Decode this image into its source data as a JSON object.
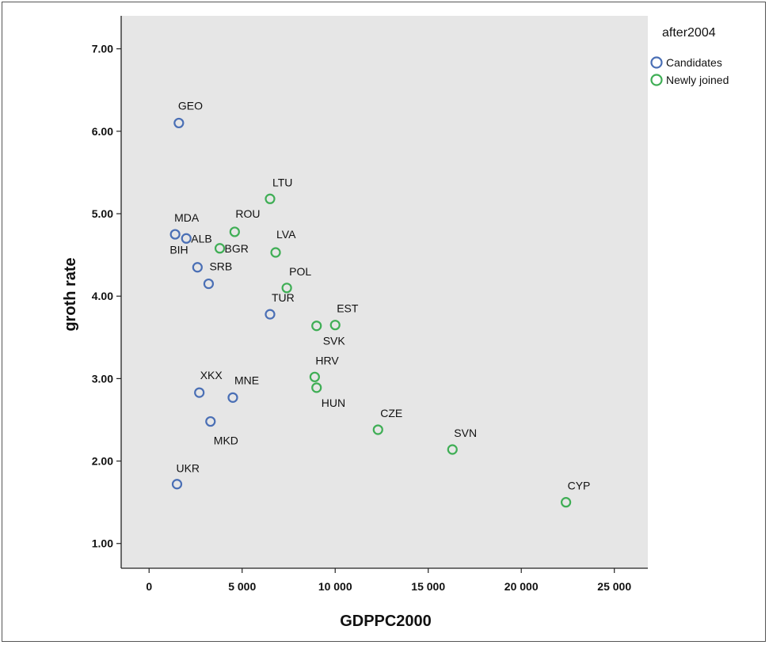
{
  "chart_data": {
    "type": "scatter",
    "xlabel": "GDPPC2000",
    "ylabel": "groth rate",
    "xlim": [
      -1500,
      26800
    ],
    "ylim": [
      0.7,
      7.4
    ],
    "x_ticks": [
      0,
      5000,
      10000,
      15000,
      20000,
      25000
    ],
    "x_tick_labels": [
      "0",
      "5 000",
      "10 000",
      "15 000",
      "20 000",
      "25 000"
    ],
    "y_ticks": [
      1,
      2,
      3,
      4,
      5,
      6,
      7
    ],
    "y_tick_labels": [
      "1.00",
      "2.00",
      "3.00",
      "4.00",
      "5.00",
      "6.00",
      "7.00"
    ],
    "grid": false,
    "legend": {
      "title": "after2004",
      "position": "right-top",
      "entries": [
        {
          "name": "Candidates",
          "color": "#4a6fb5"
        },
        {
          "name": "Newly joined",
          "color": "#3fae55"
        }
      ]
    },
    "series": [
      {
        "name": "Candidates",
        "color": "#4a6fb5",
        "points": [
          {
            "label": "GEO",
            "x": 1600,
            "y": 6.1
          },
          {
            "label": "MDA",
            "x": 1400,
            "y": 4.75
          },
          {
            "label": "ALB",
            "x": 2000,
            "y": 4.7
          },
          {
            "label": "BIH",
            "x": 2600,
            "y": 4.35
          },
          {
            "label": "SRB",
            "x": 3200,
            "y": 4.15
          },
          {
            "label": "TUR",
            "x": 6500,
            "y": 3.78
          },
          {
            "label": "XKX",
            "x": 2700,
            "y": 2.83
          },
          {
            "label": "MNE",
            "x": 4500,
            "y": 2.77
          },
          {
            "label": "MKD",
            "x": 3300,
            "y": 2.48
          },
          {
            "label": "UKR",
            "x": 1500,
            "y": 1.72
          }
        ]
      },
      {
        "name": "Newly joined",
        "color": "#3fae55",
        "points": [
          {
            "label": "LTU",
            "x": 6500,
            "y": 5.18
          },
          {
            "label": "ROU",
            "x": 4600,
            "y": 4.78
          },
          {
            "label": "BGR",
            "x": 3800,
            "y": 4.58
          },
          {
            "label": "LVA",
            "x": 6800,
            "y": 4.53
          },
          {
            "label": "POL",
            "x": 7400,
            "y": 4.1
          },
          {
            "label": "EST",
            "x": 10000,
            "y": 3.65
          },
          {
            "label": "SVK",
            "x": 9000,
            "y": 3.64
          },
          {
            "label": "HRV",
            "x": 8900,
            "y": 3.02
          },
          {
            "label": "HUN",
            "x": 9000,
            "y": 2.89
          },
          {
            "label": "CZE",
            "x": 12300,
            "y": 2.38
          },
          {
            "label": "SVN",
            "x": 16300,
            "y": 2.14
          },
          {
            "label": "CYP",
            "x": 22400,
            "y": 1.5
          }
        ]
      }
    ]
  }
}
